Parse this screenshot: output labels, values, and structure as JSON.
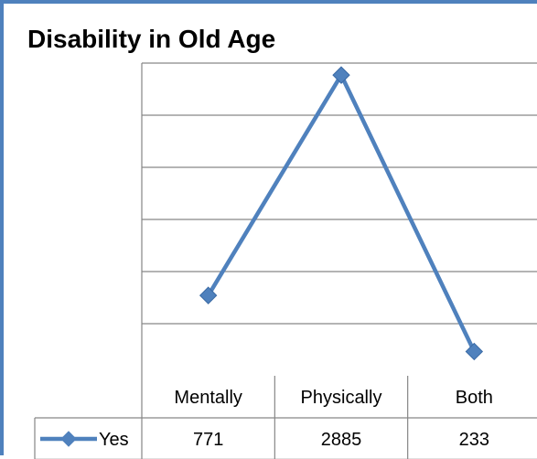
{
  "chart_data": {
    "type": "line",
    "title": "Disability in Old Age",
    "categories": [
      "Mentally",
      "Physically",
      "Both"
    ],
    "series": [
      {
        "name": "Yes",
        "values": [
          771,
          2885,
          233
        ],
        "color": "#4f81bd"
      }
    ],
    "ylim": [
      0,
      3000
    ],
    "y_gridline_step": 500,
    "grid": true,
    "legend": "inline with data table",
    "data_table": true,
    "marker": "diamond"
  }
}
